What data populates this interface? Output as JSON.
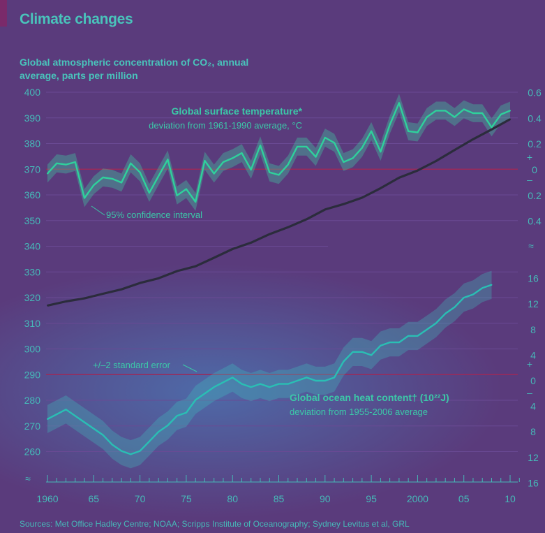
{
  "chart_data": {
    "type": "line",
    "title": "Climate changes",
    "ylabel": "Global atmospheric concentration of CO₂, annual average, parts per million",
    "source": "Sources: Met Office Hadley Centre; NOAA; Scripps Institute of Oceanography; Sydney Levitus et al, GRL",
    "x_ticks": [
      {
        "value": 1960,
        "label": "1960"
      },
      {
        "value": 1965,
        "label": "65"
      },
      {
        "value": 1970,
        "label": "70"
      },
      {
        "value": 1975,
        "label": "75"
      },
      {
        "value": 1980,
        "label": "80"
      },
      {
        "value": 1985,
        "label": "85"
      },
      {
        "value": 1990,
        "label": "90"
      },
      {
        "value": 1995,
        "label": "95"
      },
      {
        "value": 2000,
        "label": "2000"
      },
      {
        "value": 2005,
        "label": "05"
      },
      {
        "value": 2010,
        "label": "10"
      }
    ],
    "xlim": [
      1960,
      2010
    ],
    "left_axis": {
      "ylim": [
        260,
        400
      ],
      "ticks": [
        "260",
        "270",
        "280",
        "290",
        "300",
        "310",
        "320",
        "330",
        "340",
        "350",
        "360",
        "370",
        "380",
        "390",
        "400"
      ]
    },
    "temperature_axis": {
      "ticks": [
        {
          "value": 0.6,
          "label": "0.6"
        },
        {
          "value": 0.4,
          "label": "0.4"
        },
        {
          "value": 0.2,
          "label": "0.2"
        },
        {
          "value": 0,
          "label": "0"
        },
        {
          "value": -0.2,
          "label": "0.2"
        },
        {
          "value": -0.4,
          "label": "0.4"
        }
      ],
      "plus": "+",
      "minus": "–"
    },
    "ocean_axis": {
      "ticks": [
        {
          "value": 16,
          "label": "16"
        },
        {
          "value": 12,
          "label": "12"
        },
        {
          "value": 8,
          "label": "8"
        },
        {
          "value": 4,
          "label": "4"
        },
        {
          "value": 0,
          "label": "0"
        },
        {
          "value": -4,
          "label": "4"
        },
        {
          "value": -8,
          "label": "8"
        },
        {
          "value": -12,
          "label": "12"
        },
        {
          "value": -16,
          "label": "16"
        }
      ],
      "plus": "+",
      "minus": "–"
    },
    "series": [
      {
        "name": "CO₂",
        "color": "#2b2c3c",
        "x": [
          1960,
          1962,
          1964,
          1966,
          1968,
          1970,
          1972,
          1974,
          1976,
          1978,
          1980,
          1982,
          1984,
          1986,
          1988,
          1990,
          1992,
          1994,
          1996,
          1998,
          2000,
          2002,
          2004,
          2006,
          2008,
          2010
        ],
        "values": [
          316.9,
          318.5,
          319.7,
          321.5,
          323.2,
          325.7,
          327.5,
          330.3,
          332.2,
          335.5,
          338.9,
          341.4,
          344.7,
          347.4,
          350.5,
          354.3,
          356.4,
          358.9,
          362.6,
          366.7,
          369.5,
          373.2,
          377.5,
          381.7,
          385.5,
          389.5
        ]
      },
      {
        "name": "Global surface temperature*",
        "subtitle": "deviation from 1961-1990 average, °C",
        "color": "#2fd19c",
        "band_label": "95% confidence interval",
        "x": [
          1960,
          1961,
          1962,
          1963,
          1964,
          1965,
          1966,
          1967,
          1968,
          1969,
          1970,
          1971,
          1972,
          1973,
          1974,
          1975,
          1976,
          1977,
          1978,
          1979,
          1980,
          1981,
          1982,
          1983,
          1984,
          1985,
          1986,
          1987,
          1988,
          1989,
          1990,
          1991,
          1992,
          1993,
          1994,
          1995,
          1996,
          1997,
          1998,
          1999,
          2000,
          2001,
          2002,
          2003,
          2004,
          2005,
          2006,
          2007,
          2008,
          2009,
          2010
        ],
        "values": [
          -0.03,
          0.05,
          0.04,
          0.06,
          -0.22,
          -0.12,
          -0.06,
          -0.07,
          -0.1,
          0.05,
          -0.02,
          -0.18,
          -0.05,
          0.08,
          -0.2,
          -0.15,
          -0.25,
          0.07,
          -0.03,
          0.06,
          0.09,
          0.13,
          0.0,
          0.19,
          -0.02,
          -0.04,
          0.04,
          0.18,
          0.18,
          0.1,
          0.25,
          0.21,
          0.06,
          0.09,
          0.17,
          0.3,
          0.14,
          0.35,
          0.52,
          0.3,
          0.29,
          0.41,
          0.46,
          0.46,
          0.41,
          0.47,
          0.44,
          0.44,
          0.33,
          0.43,
          0.46
        ]
      },
      {
        "name": "Global ocean heat content† (10²²J)",
        "subtitle": "deviation from 1955-2006 average",
        "color": "#2abfb4",
        "band_label": "+/–2 standard error",
        "x": [
          1960,
          1962,
          1964,
          1966,
          1967,
          1968,
          1969,
          1970,
          1971,
          1972,
          1973,
          1974,
          1975,
          1976,
          1978,
          1980,
          1981,
          1982,
          1983,
          1984,
          1985,
          1986,
          1987,
          1988,
          1989,
          1990,
          1991,
          1992,
          1993,
          1994,
          1995,
          1996,
          1997,
          1998,
          1999,
          2000,
          2001,
          2002,
          2003,
          2004,
          2005,
          2006,
          2007,
          2008
        ],
        "values": [
          -6,
          -4.5,
          -6.5,
          -8.5,
          -10,
          -11,
          -11.5,
          -11,
          -9.5,
          -8,
          -7,
          -5.5,
          -5,
          -3,
          -1,
          0.5,
          -0.5,
          -1,
          -0.5,
          -1,
          -0.5,
          -0.5,
          0,
          0.5,
          0,
          0,
          0.5,
          3,
          4.5,
          4.5,
          4,
          5.5,
          6,
          6,
          7,
          7,
          8,
          9,
          10.5,
          11.5,
          13,
          13.5,
          14.5,
          15
        ]
      }
    ]
  }
}
